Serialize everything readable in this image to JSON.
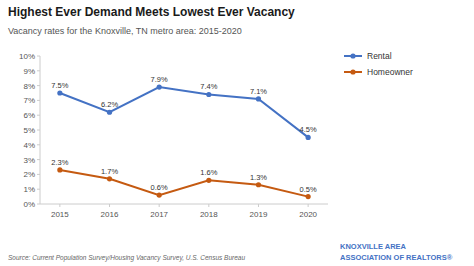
{
  "chart_data": {
    "type": "line",
    "title": "Highest Ever Demand Meets Lowest Ever Vacancy",
    "subtitle": "Vacancy rates for the Knoxville, TN metro area: 2015-2020",
    "x": [
      2015,
      2016,
      2017,
      2018,
      2019,
      2020
    ],
    "xlim": [
      2014.6,
      2020.4
    ],
    "xticks": [
      2015,
      2016,
      2017,
      2018,
      2019,
      2020
    ],
    "ylim": [
      0,
      10
    ],
    "yticks": [
      {
        "value": 0,
        "label": "0%"
      },
      {
        "value": 1,
        "label": "1%"
      },
      {
        "value": 2,
        "label": "2%"
      },
      {
        "value": 3,
        "label": "3%"
      },
      {
        "value": 4,
        "label": "4%"
      },
      {
        "value": 5,
        "label": "5%"
      },
      {
        "value": 6,
        "label": "6%"
      },
      {
        "value": 7,
        "label": "7%"
      },
      {
        "value": 8,
        "label": "8%"
      },
      {
        "value": 9,
        "label": "9%"
      },
      {
        "value": 10,
        "label": "10%"
      }
    ],
    "series": [
      {
        "name": "Rental",
        "color": "#4472c4",
        "marker": "circle",
        "values": [
          7.5,
          6.2,
          7.9,
          7.4,
          7.1,
          4.5
        ],
        "value_labels": [
          "7.5%",
          "6.2%",
          "7.9%",
          "7.4%",
          "7.1%",
          "4.5%"
        ]
      },
      {
        "name": "Homeowner",
        "color": "#c55a11",
        "marker": "circle",
        "values": [
          2.3,
          1.7,
          0.6,
          1.6,
          1.3,
          0.5
        ],
        "value_labels": [
          "2.3%",
          "1.7%",
          "0.6%",
          "1.6%",
          "1.3%",
          "0.5%"
        ]
      }
    ],
    "data_labels": true,
    "grid": false,
    "legend": "right",
    "annotations": [
      "Source: Current Population Survey/Housing Vacancy Survey, U.S. Census Bureau",
      "KNOXVILLE AREA\nASSOCIATION OF REALTORS®"
    ]
  }
}
